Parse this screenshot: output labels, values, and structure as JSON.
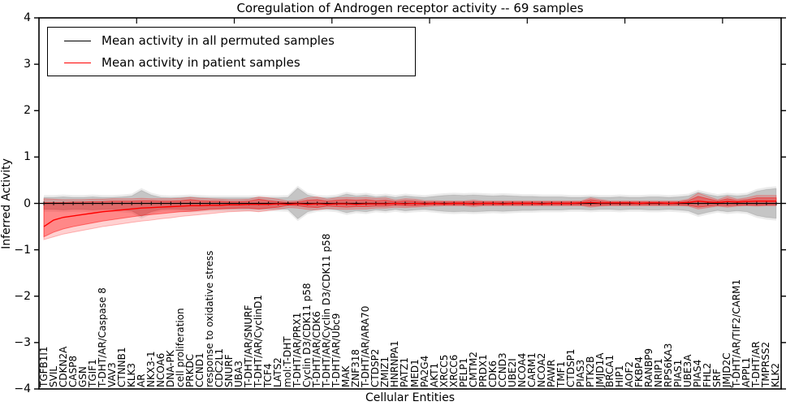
{
  "figure": {
    "title": "Coregulation of Androgen receptor activity -- 69 samples",
    "xlabel": "Cellular Entities",
    "ylabel": "Inferred Activity",
    "legend": {
      "entries": [
        {
          "label": "Mean activity in all permuted samples",
          "color": "#000000"
        },
        {
          "label": "Mean activity in patient samples",
          "color": "#ff0000"
        }
      ]
    }
  },
  "chart_data": {
    "type": "line",
    "title": "Coregulation of Androgen receptor activity -- 69 samples",
    "xlabel": "Cellular Entities",
    "ylabel": "Inferred Activity",
    "ylim": [
      -4,
      4
    ],
    "yticks": [
      4,
      3,
      2,
      1,
      0,
      -1,
      -2,
      -3,
      -4
    ],
    "top_tick_units": [
      10,
      20,
      30,
      40,
      50,
      60,
      70
    ],
    "grid": false,
    "legend_position": "upper left",
    "categories": [
      "TGFB1I1",
      "SVIL",
      "CDKN2A",
      "CASP8",
      "GSN",
      "TGIF1",
      "T-DHT/AR/Caspase 8",
      "VAV3",
      "CTNNB1",
      "KLK3",
      "AR",
      "NKX3-1",
      "NCOA6",
      "DNA-PK",
      "cell proliferation",
      "PRKDC",
      "CCND1",
      "response to oxidative stress",
      "CDC2L1",
      "SNURF",
      "UBA3",
      "T-DHT/AR/SNURF",
      "T-DHT/AR/CyclinD1",
      "TCF4",
      "LATS2",
      "mol:T-DHT",
      "T-DHT/AR/PRX1",
      "Cyclin D3/CDK11 p58",
      "T-DHT/AR/CDK6",
      "T-DHT/AR/Cyclin D3/CDK11 p58",
      "T-DHT/AR/Ubc9",
      "MAK",
      "ZNF318",
      "T-DHT/AR/ARA70",
      "CTDSP2",
      "ZMIZ1",
      "HNRNPA1",
      "PATZ1",
      "MED1",
      "PA2G4",
      "AKT1",
      "XRCC5",
      "XRCC6",
      "PELP1",
      "CMTM2",
      "PRDX1",
      "CDK6",
      "CCND3",
      "UBE2I",
      "NCOA4",
      "CARM1",
      "NCOA2",
      "PAWR",
      "TMF1",
      "CTDSP1",
      "PIAS3",
      "PTK2B",
      "JMJD1A",
      "BRCA1",
      "HIP1",
      "AOF2",
      "FKBP4",
      "RANBP9",
      "NRIP1",
      "RPS6KA3",
      "PIAS1",
      "UBE3A",
      "PIAS4",
      "FHL2",
      "SRF",
      "JMJD2C",
      "T-DHT/AR/TIF2/CARM1",
      "APPL1",
      "T-DHT/AR",
      "TMPRSS2",
      "KLK2"
    ],
    "series": [
      {
        "name": "Mean activity in all permuted samples",
        "color": "#000000",
        "constant_value": 0,
        "band_halfwidth": [
          0.13,
          0.13,
          0.14,
          0.13,
          0.13,
          0.14,
          0.13,
          0.13,
          0.14,
          0.16,
          0.28,
          0.18,
          0.13,
          0.12,
          0.13,
          0.14,
          0.13,
          0.12,
          0.12,
          0.12,
          0.12,
          0.12,
          0.13,
          0.12,
          0.12,
          0.13,
          0.33,
          0.18,
          0.13,
          0.12,
          0.14,
          0.2,
          0.16,
          0.18,
          0.14,
          0.16,
          0.13,
          0.16,
          0.14,
          0.13,
          0.15,
          0.17,
          0.18,
          0.17,
          0.18,
          0.17,
          0.16,
          0.17,
          0.16,
          0.15,
          0.15,
          0.14,
          0.14,
          0.14,
          0.13,
          0.13,
          0.14,
          0.13,
          0.13,
          0.14,
          0.13,
          0.13,
          0.14,
          0.14,
          0.13,
          0.14,
          0.16,
          0.24,
          0.19,
          0.15,
          0.18,
          0.16,
          0.18,
          0.26,
          0.3,
          0.32
        ],
        "band_outer_extra": 0.05,
        "band_fill": "rgba(0,0,0,0.16)",
        "band_outer_fill": "rgba(0,0,0,0.08)"
      },
      {
        "name": "Mean activity in patient samples",
        "color": "#ff0000",
        "values": [
          -0.5,
          -0.36,
          -0.3,
          -0.27,
          -0.24,
          -0.21,
          -0.18,
          -0.16,
          -0.14,
          -0.12,
          -0.1,
          -0.09,
          -0.08,
          -0.07,
          -0.06,
          -0.05,
          -0.05,
          -0.04,
          -0.04,
          -0.03,
          -0.03,
          -0.02,
          -0.02,
          -0.02,
          -0.01,
          -0.02,
          -0.01,
          -0.02,
          -0.01,
          -0.02,
          -0.01,
          -0.01,
          -0.02,
          -0.01,
          -0.01,
          -0.01,
          0.0,
          -0.01,
          0.0,
          -0.01,
          0.0,
          -0.01,
          0.0,
          0.0,
          -0.01,
          0.0,
          0.0,
          -0.01,
          0.0,
          0.0,
          0.0,
          -0.01,
          0.0,
          0.0,
          0.0,
          0.01,
          0.02,
          0.01,
          0.01,
          0.01,
          0.01,
          0.0,
          0.01,
          0.01,
          0.0,
          0.01,
          0.02,
          0.05,
          0.03,
          0.02,
          0.04,
          0.03,
          0.04,
          0.05,
          0.05,
          0.05
        ],
        "band_inner_upper": [
          0.02,
          0.02,
          0.02,
          0.03,
          0.03,
          0.04,
          0.04,
          0.05,
          0.05,
          0.05,
          0.06,
          0.06,
          0.05,
          0.05,
          0.06,
          0.08,
          0.06,
          0.05,
          0.05,
          0.04,
          0.04,
          0.05,
          0.09,
          0.06,
          0.04,
          0.02,
          0.03,
          0.07,
          0.08,
          0.05,
          0.07,
          0.08,
          0.07,
          0.08,
          0.06,
          0.07,
          0.04,
          0.06,
          0.05,
          0.03,
          0.03,
          0.03,
          0.03,
          0.03,
          0.04,
          0.03,
          0.03,
          0.03,
          0.03,
          0.03,
          0.03,
          0.03,
          0.03,
          0.03,
          0.03,
          0.03,
          0.08,
          0.05,
          0.03,
          0.03,
          0.03,
          0.03,
          0.03,
          0.03,
          0.03,
          0.03,
          0.06,
          0.15,
          0.1,
          0.05,
          0.1,
          0.06,
          0.08,
          0.12,
          0.12,
          0.12
        ],
        "band_inner_lower": [
          -0.72,
          -0.62,
          -0.55,
          -0.5,
          -0.46,
          -0.42,
          -0.38,
          -0.35,
          -0.32,
          -0.29,
          -0.26,
          -0.24,
          -0.22,
          -0.2,
          -0.18,
          -0.17,
          -0.15,
          -0.13,
          -0.12,
          -0.11,
          -0.1,
          -0.1,
          -0.12,
          -0.1,
          -0.08,
          -0.04,
          -0.05,
          -0.08,
          -0.09,
          -0.06,
          -0.07,
          -0.08,
          -0.07,
          -0.07,
          -0.06,
          -0.06,
          -0.04,
          -0.05,
          -0.05,
          -0.04,
          -0.03,
          -0.03,
          -0.03,
          -0.03,
          -0.04,
          -0.03,
          -0.03,
          -0.03,
          -0.03,
          -0.03,
          -0.03,
          -0.03,
          -0.03,
          -0.03,
          -0.03,
          -0.03,
          -0.05,
          -0.04,
          -0.03,
          -0.03,
          -0.03,
          -0.03,
          -0.03,
          -0.03,
          -0.03,
          -0.03,
          -0.04,
          -0.08,
          -0.06,
          -0.04,
          -0.05,
          -0.04,
          -0.03,
          -0.04,
          -0.03,
          -0.03
        ],
        "band_outer_upper": [
          0.1,
          0.09,
          0.08,
          0.08,
          0.08,
          0.09,
          0.09,
          0.1,
          0.1,
          0.1,
          0.11,
          0.1,
          0.1,
          0.1,
          0.11,
          0.13,
          0.11,
          0.1,
          0.09,
          0.08,
          0.08,
          0.09,
          0.14,
          0.12,
          0.09,
          0.05,
          0.06,
          0.12,
          0.14,
          0.09,
          0.12,
          0.13,
          0.12,
          0.13,
          0.11,
          0.12,
          0.07,
          0.1,
          0.09,
          0.06,
          0.06,
          0.05,
          0.05,
          0.05,
          0.07,
          0.05,
          0.05,
          0.05,
          0.05,
          0.05,
          0.05,
          0.05,
          0.05,
          0.05,
          0.05,
          0.05,
          0.12,
          0.08,
          0.05,
          0.05,
          0.05,
          0.05,
          0.05,
          0.05,
          0.05,
          0.05,
          0.09,
          0.22,
          0.15,
          0.08,
          0.15,
          0.09,
          0.12,
          0.17,
          0.17,
          0.17
        ],
        "band_outer_lower": [
          -0.78,
          -0.72,
          -0.66,
          -0.62,
          -0.58,
          -0.54,
          -0.5,
          -0.47,
          -0.44,
          -0.41,
          -0.38,
          -0.36,
          -0.33,
          -0.31,
          -0.28,
          -0.26,
          -0.24,
          -0.22,
          -0.2,
          -0.18,
          -0.17,
          -0.16,
          -0.18,
          -0.15,
          -0.13,
          -0.09,
          -0.1,
          -0.13,
          -0.14,
          -0.11,
          -0.12,
          -0.13,
          -0.12,
          -0.12,
          -0.1,
          -0.1,
          -0.08,
          -0.09,
          -0.08,
          -0.07,
          -0.06,
          -0.05,
          -0.05,
          -0.05,
          -0.07,
          -0.05,
          -0.05,
          -0.05,
          -0.05,
          -0.05,
          -0.05,
          -0.05,
          -0.05,
          -0.05,
          -0.05,
          -0.05,
          -0.08,
          -0.06,
          -0.05,
          -0.05,
          -0.05,
          -0.05,
          -0.05,
          -0.05,
          -0.05,
          -0.05,
          -0.06,
          -0.12,
          -0.09,
          -0.06,
          -0.08,
          -0.06,
          -0.05,
          -0.06,
          -0.05,
          -0.05
        ],
        "band_inner_fill": "rgba(255,0,0,0.35)",
        "band_outer_fill": "rgba(255,0,0,0.18)"
      }
    ]
  }
}
